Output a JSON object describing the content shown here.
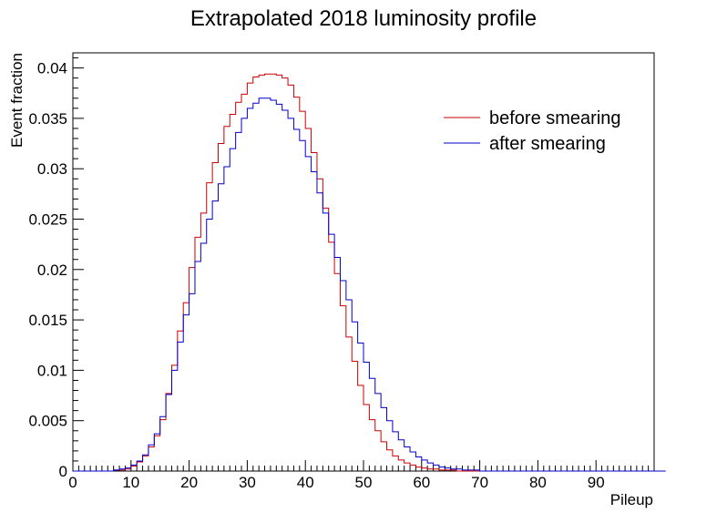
{
  "chart_data": {
    "type": "line",
    "title": "Extrapolated 2018 luminosity profile",
    "xlabel": "Pileup",
    "ylabel": "Event fraction",
    "xlim": [
      0,
      100
    ],
    "ylim": [
      0,
      0.0415
    ],
    "x_ticks": [
      "0",
      "10",
      "20",
      "30",
      "40",
      "50",
      "60",
      "70",
      "80",
      "90"
    ],
    "y_ticks": [
      "0",
      "0.005",
      "0.01",
      "0.015",
      "0.02",
      "0.025",
      "0.03",
      "0.035",
      "0.04"
    ],
    "legend_position": "top-right",
    "grid": false,
    "bin_width": 1,
    "series": [
      {
        "name": "before smearing",
        "color": "#cc0000",
        "values": [
          0,
          0,
          0,
          0,
          0,
          0,
          0,
          0.0001,
          0.0001,
          0.0002,
          0.0005,
          0.0009,
          0.0015,
          0.0024,
          0.0035,
          0.0051,
          0.0077,
          0.0105,
          0.0139,
          0.0167,
          0.0202,
          0.0232,
          0.0256,
          0.0286,
          0.0306,
          0.0325,
          0.0342,
          0.0354,
          0.0366,
          0.0374,
          0.0385,
          0.0391,
          0.0393,
          0.0394,
          0.0394,
          0.0393,
          0.039,
          0.0383,
          0.0371,
          0.0357,
          0.034,
          0.0316,
          0.029,
          0.0261,
          0.0227,
          0.0196,
          0.0164,
          0.0133,
          0.0109,
          0.0085,
          0.0066,
          0.0051,
          0.004,
          0.0029,
          0.0021,
          0.0015,
          0.0011,
          0.0008,
          0.0006,
          0.0004,
          0.0003,
          0.0002,
          0.0002,
          0.0001,
          0.0001,
          0.0001,
          0,
          0,
          0,
          0,
          0,
          0,
          0,
          0,
          0,
          0,
          0,
          0,
          0,
          0,
          0,
          0,
          0,
          0,
          0,
          0,
          0,
          0,
          0,
          0,
          0,
          0,
          0,
          0,
          0,
          0,
          0,
          0,
          0,
          0
        ]
      },
      {
        "name": "after smearing",
        "color": "#0000cc",
        "values": [
          0,
          0,
          0,
          0,
          0,
          0,
          0,
          0.0001,
          0.0002,
          0.0003,
          0.0006,
          0.001,
          0.0016,
          0.0026,
          0.0037,
          0.0054,
          0.0076,
          0.01,
          0.0128,
          0.0155,
          0.0176,
          0.0208,
          0.0226,
          0.025,
          0.0268,
          0.0285,
          0.0302,
          0.032,
          0.0336,
          0.035,
          0.036,
          0.0365,
          0.037,
          0.037,
          0.0368,
          0.0364,
          0.0358,
          0.035,
          0.0339,
          0.0328,
          0.0312,
          0.0297,
          0.0276,
          0.0256,
          0.0235,
          0.0212,
          0.0189,
          0.017,
          0.0148,
          0.0127,
          0.0108,
          0.0092,
          0.0077,
          0.0063,
          0.005,
          0.0039,
          0.0031,
          0.0024,
          0.0019,
          0.0014,
          0.0011,
          0.0008,
          0.0006,
          0.0004,
          0.0003,
          0.0002,
          0.0002,
          0.0001,
          0.0001,
          0.0001,
          0,
          0,
          0,
          0,
          0,
          0,
          0,
          0,
          0,
          0,
          0,
          0,
          0,
          0,
          0,
          0,
          0,
          0,
          0,
          0,
          0,
          0,
          0,
          0,
          0,
          0,
          0,
          0,
          0,
          0,
          0,
          0
        ]
      }
    ]
  }
}
